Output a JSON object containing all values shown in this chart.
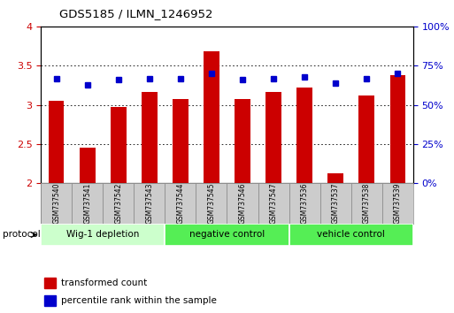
{
  "title": "GDS5185 / ILMN_1246952",
  "samples": [
    "GSM737540",
    "GSM737541",
    "GSM737542",
    "GSM737543",
    "GSM737544",
    "GSM737545",
    "GSM737546",
    "GSM737547",
    "GSM737536",
    "GSM737537",
    "GSM737538",
    "GSM737539"
  ],
  "transformed_count": [
    3.05,
    2.45,
    2.97,
    3.17,
    3.08,
    3.68,
    3.07,
    3.17,
    3.22,
    2.13,
    3.12,
    3.38
  ],
  "percentile_rank": [
    67,
    63,
    66,
    67,
    67,
    70,
    66,
    67,
    68,
    64,
    67,
    70
  ],
  "ylim_left": [
    2.0,
    4.0
  ],
  "ylim_right": [
    0,
    100
  ],
  "yticks_left": [
    2.0,
    2.5,
    3.0,
    3.5,
    4.0
  ],
  "ytick_labels_left": [
    "2",
    "2.5",
    "3",
    "3.5",
    "4"
  ],
  "yticks_right": [
    0,
    25,
    50,
    75,
    100
  ],
  "ytick_labels_right": [
    "0%",
    "25%",
    "50%",
    "75%",
    "100%"
  ],
  "groups": [
    {
      "label": "Wig-1 depletion",
      "start": 0,
      "end": 3,
      "color": "#ccffcc"
    },
    {
      "label": "negative control",
      "start": 4,
      "end": 7,
      "color": "#55ee55"
    },
    {
      "label": "vehicle control",
      "start": 8,
      "end": 11,
      "color": "#55ee55"
    }
  ],
  "bar_color": "#cc0000",
  "dot_color": "#0000cc",
  "bar_width": 0.5,
  "grid_color": "black",
  "background_color": "#ffffff",
  "left_tick_color": "#cc0000",
  "right_tick_color": "#0000cc",
  "legend_items": [
    {
      "label": "transformed count",
      "color": "#cc0000"
    },
    {
      "label": "percentile rank within the sample",
      "color": "#0000cc"
    }
  ],
  "label_box_color": "#cccccc",
  "label_box_edge": "#888888"
}
